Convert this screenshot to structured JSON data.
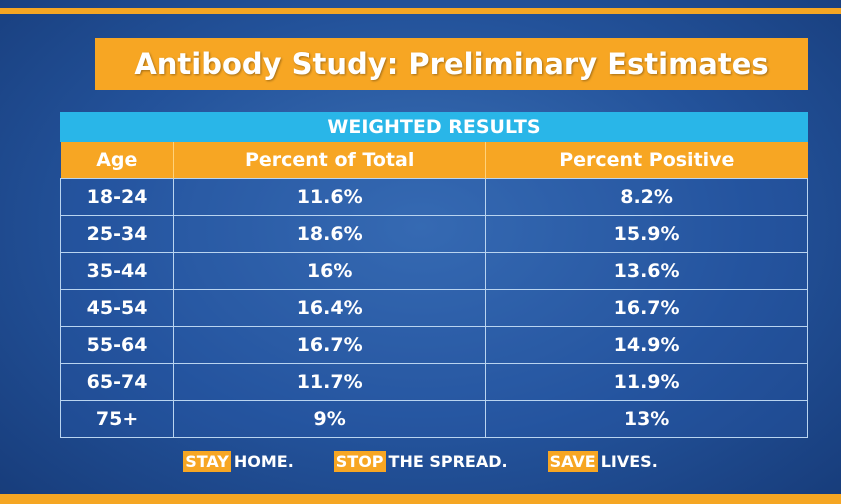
{
  "header": {
    "title": "Antibody Study: Preliminary Estimates"
  },
  "table": {
    "caption": "WEIGHTED RESULTS",
    "columns": [
      "Age",
      "Percent of Total",
      "Percent Positive"
    ],
    "rows": [
      [
        "18-24",
        "11.6%",
        "8.2%"
      ],
      [
        "25-34",
        "18.6%",
        "15.9%"
      ],
      [
        "35-44",
        "16%",
        "13.6%"
      ],
      [
        "45-54",
        "16.4%",
        "16.7%"
      ],
      [
        "55-64",
        "16.7%",
        "14.9%"
      ],
      [
        "65-74",
        "11.7%",
        "11.9%"
      ],
      [
        "75+",
        "9%",
        "13%"
      ]
    ]
  },
  "footer": {
    "slogans": [
      {
        "highlight": "STAY",
        "text": "HOME."
      },
      {
        "highlight": "STOP",
        "text": "THE SPREAD."
      },
      {
        "highlight": "SAVE",
        "text": "LIVES."
      }
    ]
  }
}
